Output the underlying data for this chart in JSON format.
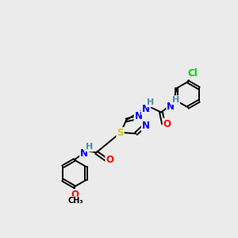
{
  "bg_color": "#ebebeb",
  "atom_colors": {
    "N": "#0000ff",
    "O": "#ff0000",
    "S": "#cccc00",
    "Cl": "#00cc00",
    "C": "#000000",
    "H": "#4a8fa8"
  },
  "bond_color": "#000000",
  "figsize": [
    3.0,
    3.0
  ],
  "dpi": 100
}
